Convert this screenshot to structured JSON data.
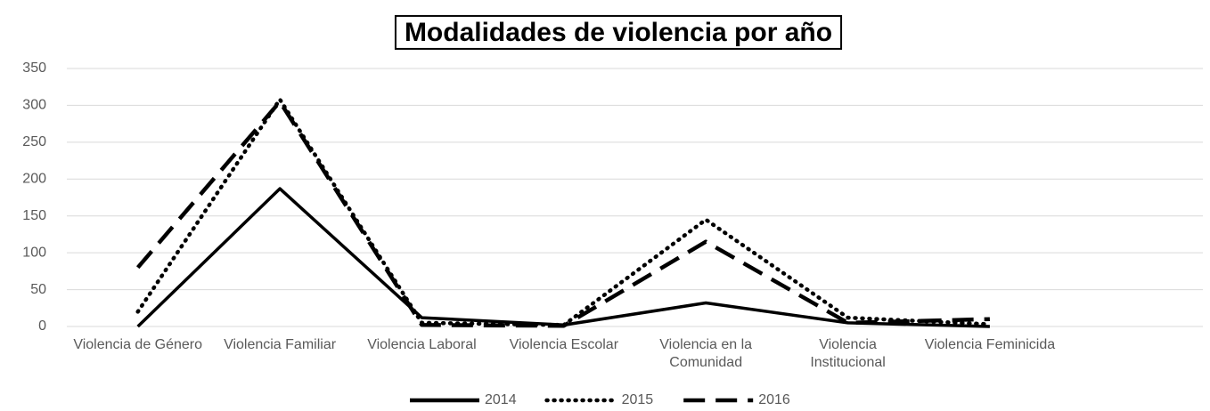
{
  "chart_data": {
    "type": "line",
    "title": "Modalidades de violencia por año",
    "categories": [
      "Violencia de Género",
      "Violencia Familiar",
      "Violencia Laboral",
      "Violencia Escolar",
      "Violencia en la Comunidad",
      "Violencia Institucional",
      "Violencia Feminicida",
      null
    ],
    "series": [
      {
        "name": "2014",
        "color": "#000000",
        "line_style": "solid",
        "values": [
          0,
          187,
          12,
          2,
          32,
          5,
          0,
          null
        ]
      },
      {
        "name": "2015",
        "color": "#000000",
        "line_style": "dotted",
        "values": [
          20,
          308,
          5,
          2,
          145,
          12,
          3,
          null
        ]
      },
      {
        "name": "2016",
        "color": "#000000",
        "line_style": "dashed",
        "values": [
          80,
          305,
          2,
          1,
          115,
          5,
          10,
          null
        ]
      }
    ],
    "ylim": [
      0,
      350
    ],
    "yticks": [
      0,
      50,
      100,
      150,
      200,
      250,
      300,
      350
    ],
    "grid": true,
    "legend": "bottom"
  }
}
